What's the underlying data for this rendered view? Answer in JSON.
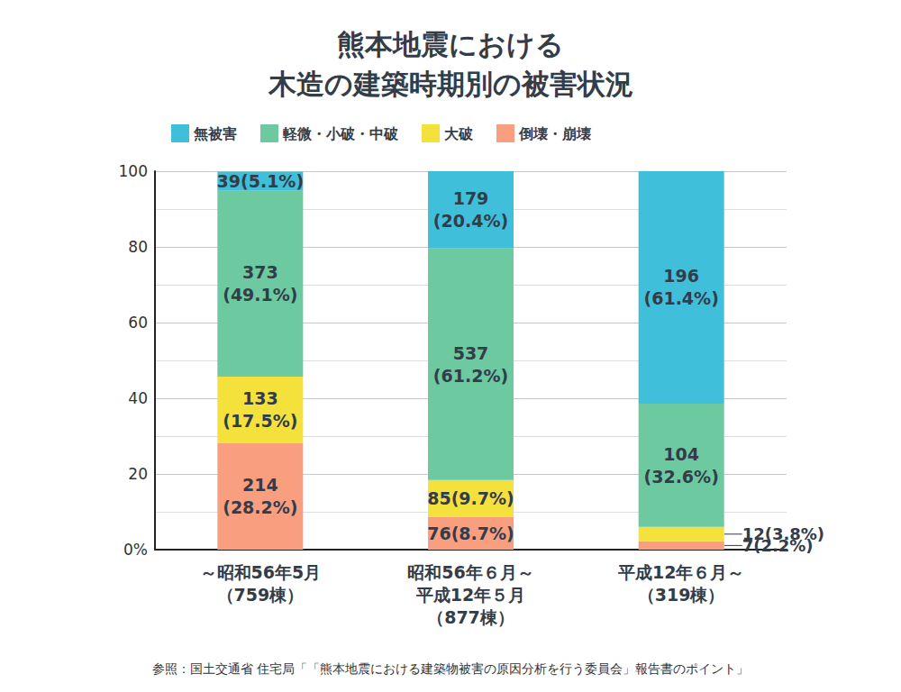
{
  "chart_data": {
    "type": "bar",
    "title": "熊本地震における\n木造の建築時期別の被害状況",
    "categories": [
      "～昭和56年5月\n（759棟）",
      "昭和56年６月～\n平成12年５月\n（877棟）",
      "平成12年６月～\n（319棟）"
    ],
    "series": [
      {
        "name": "無被害",
        "color": "#3fbfd9",
        "values": [
          5.1,
          20.4,
          61.4
        ],
        "value_labels": [
          "39(5.1%)",
          "179\n(20.4%)",
          "196\n(61.4%)"
        ]
      },
      {
        "name": "軽微・小破・中破",
        "color": "#6cc9a0",
        "values": [
          49.1,
          61.2,
          32.6
        ],
        "value_labels": [
          "373\n(49.1%)",
          "537\n(61.2%)",
          "104\n(32.6%)"
        ]
      },
      {
        "name": "大破",
        "color": "#f5e13c",
        "values": [
          17.5,
          9.7,
          3.8
        ],
        "value_labels": [
          "133\n(17.5%)",
          "85(9.7%)",
          "12(3.8%)"
        ]
      },
      {
        "name": "倒壊・崩壊",
        "color": "#fa9e80",
        "values": [
          28.2,
          8.7,
          2.2
        ],
        "value_labels": [
          "214\n(28.2%)",
          "76(8.7%)",
          "7(2.2%)"
        ]
      }
    ],
    "ylim": [
      0,
      100
    ],
    "yticks": [
      {
        "value": 0,
        "label": "0%"
      },
      20,
      40,
      60,
      80,
      100
    ],
    "stacked": true,
    "data_labels": true,
    "grid": true,
    "legend": "top",
    "note": "参照：国土交通省 住宅局「「熊本地震における建築物被害の原因分析を行う委員会」報告書のポイント」"
  }
}
